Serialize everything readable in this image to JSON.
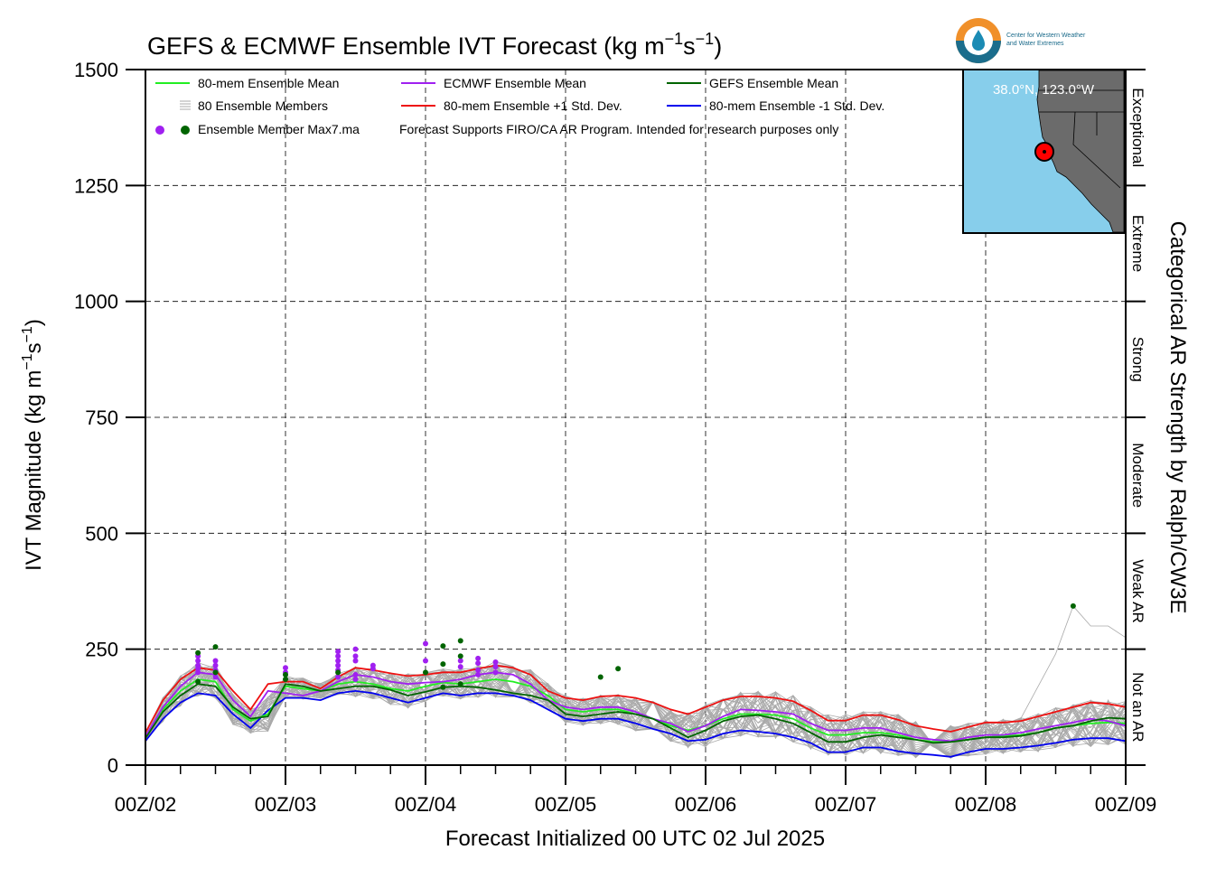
{
  "chart_data": {
    "type": "line",
    "title_main": "GEFS & ECMWF Ensemble IVT Forecast (kg m",
    "title_exp1": "−1",
    "title_mid": "s",
    "title_exp2": "−1",
    "title_close": ")",
    "ylabel_main": "IVT Magnitude (kg m",
    "ylabel_exp1": "−1",
    "ylabel_mid": "s",
    "ylabel_exp2": "−1",
    "ylabel_close": ")",
    "xlabel": "Forecast Initialized 00 UTC 02 Jul 2025",
    "right_label": "Categorical AR Strength by Ralph/CW3E",
    "ylim": [
      0,
      1500
    ],
    "xlim": [
      0,
      168
    ],
    "y_ticks": [
      "0",
      "250",
      "500",
      "750",
      "1000",
      "1250",
      "1500"
    ],
    "x_tick_labels": [
      "00Z/02",
      "00Z/03",
      "00Z/04",
      "00Z/05",
      "00Z/06",
      "00Z/07",
      "00Z/08",
      "00Z/09"
    ],
    "grid": true,
    "legend_position": "top-left",
    "categories": [
      "Not an AR",
      "Weak AR",
      "Moderate",
      "Strong",
      "Extreme",
      "Exceptional"
    ],
    "category_bounds": [
      0,
      250,
      500,
      750,
      1000,
      1250,
      1500
    ],
    "x": [
      0,
      3,
      6,
      9,
      12,
      15,
      18,
      21,
      24,
      27,
      30,
      33,
      36,
      39,
      42,
      45,
      48,
      51,
      54,
      57,
      60,
      63,
      66,
      69,
      72,
      75,
      78,
      81,
      84,
      87,
      90,
      93,
      96,
      99,
      102,
      105,
      108,
      111,
      114,
      117,
      120,
      123,
      126,
      129,
      132,
      135,
      138,
      141,
      144,
      147,
      150,
      153,
      156,
      159,
      162,
      165,
      168
    ],
    "series": [
      {
        "name": "80-mem Ensemble Mean",
        "color": "#22ee22",
        "values": [
          60,
          120,
          160,
          185,
          180,
          120,
          95,
          110,
          170,
          165,
          160,
          175,
          180,
          175,
          165,
          160,
          170,
          178,
          175,
          180,
          185,
          180,
          170,
          150,
          120,
          115,
          120,
          120,
          110,
          100,
          85,
          75,
          85,
          100,
          110,
          110,
          108,
          100,
          80,
          65,
          65,
          70,
          70,
          65,
          55,
          50,
          50,
          55,
          60,
          62,
          65,
          70,
          80,
          85,
          90,
          92,
          90
        ]
      },
      {
        "name": "ECMWF Ensemble Mean",
        "color": "#a020f0",
        "values": [
          62,
          125,
          170,
          200,
          195,
          140,
          105,
          160,
          155,
          150,
          160,
          180,
          195,
          190,
          180,
          175,
          178,
          180,
          185,
          195,
          200,
          195,
          175,
          140,
          125,
          120,
          125,
          125,
          115,
          100,
          90,
          72,
          85,
          105,
          120,
          118,
          115,
          110,
          90,
          75,
          75,
          80,
          80,
          70,
          60,
          55,
          52,
          60,
          65,
          65,
          70,
          78,
          85,
          92,
          100,
          95,
          85
        ]
      },
      {
        "name": "GEFS Ensemble Mean",
        "color": "#006400",
        "values": [
          58,
          115,
          150,
          175,
          170,
          125,
          100,
          105,
          175,
          170,
          160,
          165,
          170,
          170,
          162,
          150,
          158,
          168,
          170,
          168,
          162,
          155,
          150,
          140,
          110,
          105,
          110,
          115,
          110,
          100,
          80,
          60,
          75,
          95,
          105,
          108,
          100,
          90,
          70,
          50,
          50,
          60,
          65,
          60,
          55,
          48,
          50,
          55,
          60,
          60,
          63,
          70,
          80,
          85,
          95,
          102,
          100
        ]
      },
      {
        "name": "80-mem Ensemble +1 Std. Dev.",
        "color": "#ee1111",
        "values": [
          70,
          140,
          185,
          210,
          205,
          160,
          120,
          175,
          180,
          180,
          165,
          190,
          210,
          205,
          198,
          192,
          195,
          200,
          200,
          208,
          215,
          210,
          195,
          160,
          145,
          140,
          148,
          150,
          145,
          135,
          120,
          110,
          125,
          140,
          148,
          148,
          145,
          138,
          118,
          96,
          96,
          108,
          108,
          98,
          85,
          78,
          72,
          82,
          92,
          92,
          95,
          105,
          115,
          125,
          135,
          132,
          125
        ]
      },
      {
        "name": "80-mem Ensemble -1 Std. Dev.",
        "color": "#0000ee",
        "values": [
          52,
          100,
          135,
          155,
          150,
          110,
          80,
          118,
          145,
          145,
          140,
          155,
          160,
          155,
          145,
          135,
          145,
          155,
          150,
          155,
          155,
          150,
          140,
          120,
          100,
          95,
          100,
          100,
          90,
          78,
          68,
          52,
          55,
          68,
          75,
          72,
          68,
          60,
          48,
          28,
          28,
          38,
          38,
          30,
          25,
          22,
          18,
          28,
          35,
          35,
          38,
          42,
          48,
          55,
          58,
          58,
          52
        ]
      }
    ],
    "members_label": "80 Ensemble Members",
    "max_label": "Ensemble Member Max7.ma",
    "disclaimer": "Forecast Supports FIRO/CA AR Program. Intended for research purposes only",
    "max_points_ecmwf": [
      {
        "x": 9,
        "y": 235
      },
      {
        "x": 9,
        "y": 225
      },
      {
        "x": 9,
        "y": 215
      },
      {
        "x": 9,
        "y": 208
      },
      {
        "x": 9,
        "y": 200
      },
      {
        "x": 12,
        "y": 225
      },
      {
        "x": 12,
        "y": 215
      },
      {
        "x": 12,
        "y": 205
      },
      {
        "x": 12,
        "y": 190
      },
      {
        "x": 24,
        "y": 210
      },
      {
        "x": 24,
        "y": 200
      },
      {
        "x": 33,
        "y": 245
      },
      {
        "x": 33,
        "y": 235
      },
      {
        "x": 33,
        "y": 225
      },
      {
        "x": 33,
        "y": 215
      },
      {
        "x": 33,
        "y": 205
      },
      {
        "x": 33,
        "y": 190
      },
      {
        "x": 36,
        "y": 250
      },
      {
        "x": 36,
        "y": 235
      },
      {
        "x": 36,
        "y": 225
      },
      {
        "x": 36,
        "y": 195
      },
      {
        "x": 36,
        "y": 185
      },
      {
        "x": 39,
        "y": 215
      },
      {
        "x": 39,
        "y": 208
      },
      {
        "x": 48,
        "y": 262
      },
      {
        "x": 48,
        "y": 225
      },
      {
        "x": 54,
        "y": 225
      },
      {
        "x": 54,
        "y": 212
      },
      {
        "x": 57,
        "y": 230
      },
      {
        "x": 57,
        "y": 220
      },
      {
        "x": 57,
        "y": 205
      },
      {
        "x": 57,
        "y": 195
      },
      {
        "x": 60,
        "y": 222
      },
      {
        "x": 60,
        "y": 212
      },
      {
        "x": 60,
        "y": 200
      }
    ],
    "max_points_gefs": [
      {
        "x": 9,
        "y": 242
      },
      {
        "x": 9,
        "y": 180
      },
      {
        "x": 12,
        "y": 255
      },
      {
        "x": 12,
        "y": 200
      },
      {
        "x": 24,
        "y": 195
      },
      {
        "x": 24,
        "y": 185
      },
      {
        "x": 33,
        "y": 200
      },
      {
        "x": 48,
        "y": 200
      },
      {
        "x": 51,
        "y": 257
      },
      {
        "x": 51,
        "y": 218
      },
      {
        "x": 51,
        "y": 168
      },
      {
        "x": 54,
        "y": 268
      },
      {
        "x": 54,
        "y": 235
      },
      {
        "x": 54,
        "y": 175
      },
      {
        "x": 78,
        "y": 190
      },
      {
        "x": 81,
        "y": 208
      },
      {
        "x": 159,
        "y": 343
      }
    ]
  },
  "inset_map": {
    "label": "38.0°N, 123.0°W",
    "ocean_color": "#87ceeb",
    "land_color": "#6b6b6b",
    "marker_color": "#ff0000"
  },
  "logo": {
    "line1": "Center for Western Weather",
    "line2": "and Water Extremes"
  }
}
